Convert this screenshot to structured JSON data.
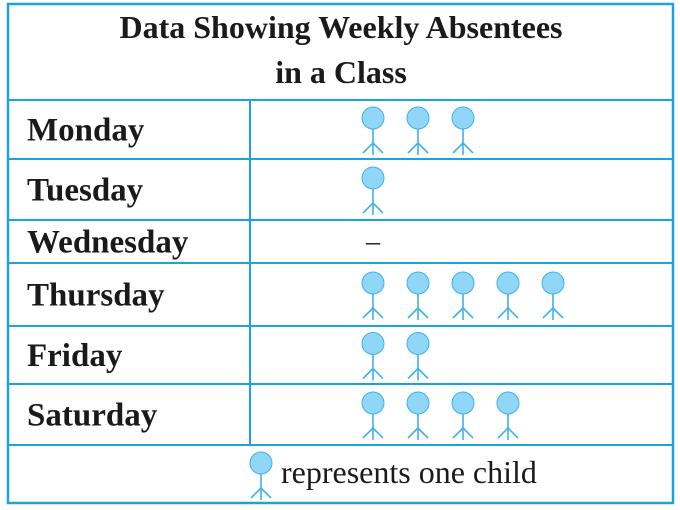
{
  "title_line1": "Data Showing Weekly Absentees",
  "title_line2": "in a Class",
  "key_text": "represents one child",
  "icon": "child-figure-icon",
  "colors": {
    "border": "#1aa3e0",
    "figure": "#8fd6f7",
    "figure_stroke": "#3fb2e8",
    "text": "#1a1a1a"
  },
  "chart_data": {
    "type": "table",
    "categories": [
      "Monday",
      "Tuesday",
      "Wednesday",
      "Thursday",
      "Friday",
      "Saturday"
    ],
    "values": [
      3,
      1,
      0,
      5,
      2,
      4
    ],
    "empty_mark": "–",
    "title": "Data Showing Weekly Absentees in a Class",
    "key": "represents one child"
  }
}
